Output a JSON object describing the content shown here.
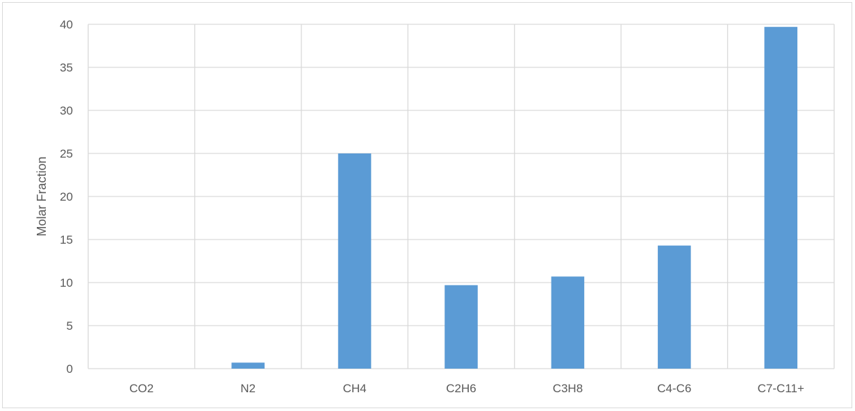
{
  "chart_data": {
    "type": "bar",
    "title": "",
    "xlabel": "",
    "ylabel": "Molar Fraction",
    "categories": [
      "CO2",
      "N2",
      "CH4",
      "C2H6",
      "C3H8",
      "C4-C6",
      "C7-C11+"
    ],
    "values": [
      0.0,
      0.7,
      25.0,
      9.7,
      10.7,
      14.3,
      39.7
    ],
    "ylim": [
      0,
      40
    ],
    "yticks": [
      "0",
      "5",
      "10",
      "15",
      "20",
      "25",
      "30",
      "35",
      "40"
    ],
    "grid": "horizontal and vertical",
    "legend": "none",
    "bar_color": "#5b9bd5",
    "grid_color": "#d9d9d9"
  }
}
